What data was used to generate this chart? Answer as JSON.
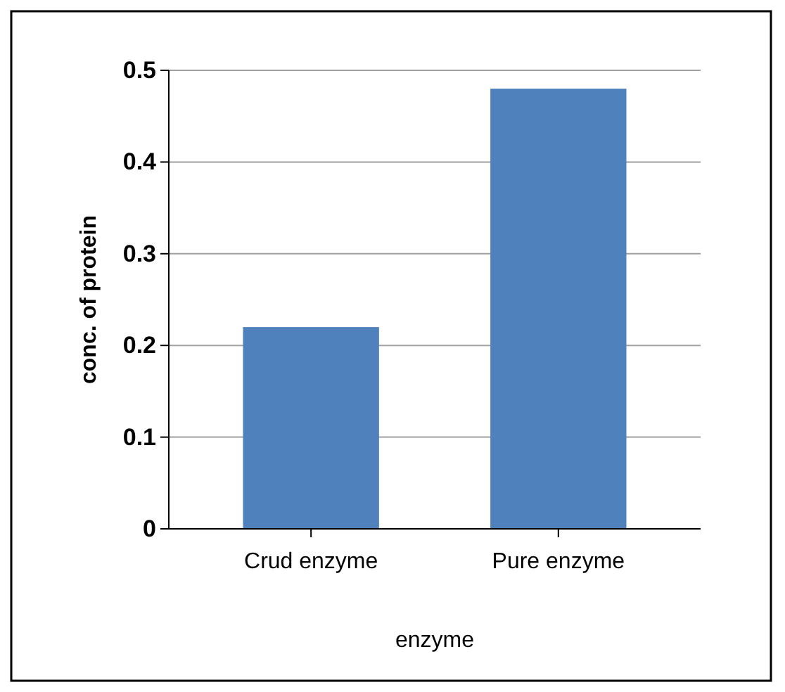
{
  "chart_data": {
    "type": "bar",
    "categories": [
      "Crud enzyme",
      "Pure enzyme"
    ],
    "values": [
      0.22,
      0.48
    ],
    "color": "#4f81bd",
    "xlabel": "enzyme",
    "ylabel": "conc. of protein",
    "ylim": [
      0,
      0.5
    ],
    "yticks": [
      0,
      0.1,
      0.2,
      0.3,
      0.4,
      0.5
    ],
    "grid": "y"
  }
}
